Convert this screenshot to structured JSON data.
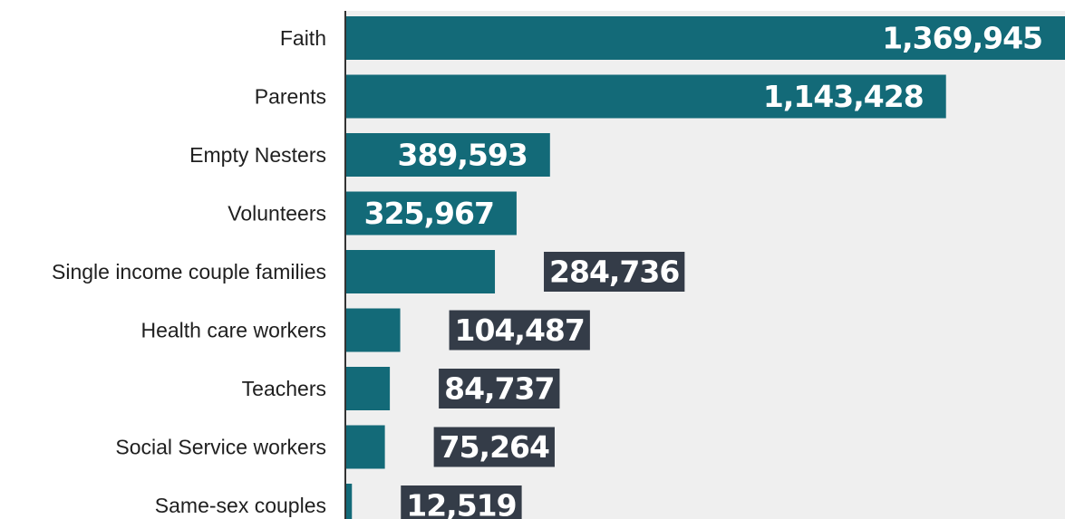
{
  "chart_data": {
    "type": "bar",
    "orientation": "horizontal",
    "categories": [
      "Faith",
      "Parents",
      "Empty Nesters",
      "Volunteers",
      "Single income couple families",
      "Health care workers",
      "Teachers",
      "Social Service workers",
      "Same-sex couples"
    ],
    "values": [
      1369945,
      1143428,
      389593,
      325967,
      284736,
      104487,
      84737,
      75264,
      12519
    ],
    "value_labels": [
      "1,369,945",
      "1,143,428",
      "389,593",
      "325,967",
      "284,736",
      "104,487",
      "84,737",
      "75,264",
      "12,519"
    ],
    "title": "",
    "xlabel": "",
    "ylabel": "",
    "xlim": [
      0,
      1369945
    ],
    "grid": false,
    "legend": "none",
    "colors": {
      "bar": "#136a78",
      "plot_background": "#efefef",
      "axis_line": "#333333",
      "value_label_box": "#343c48",
      "value_text": "#ffffff",
      "category_text": "#1f1f1f"
    }
  }
}
